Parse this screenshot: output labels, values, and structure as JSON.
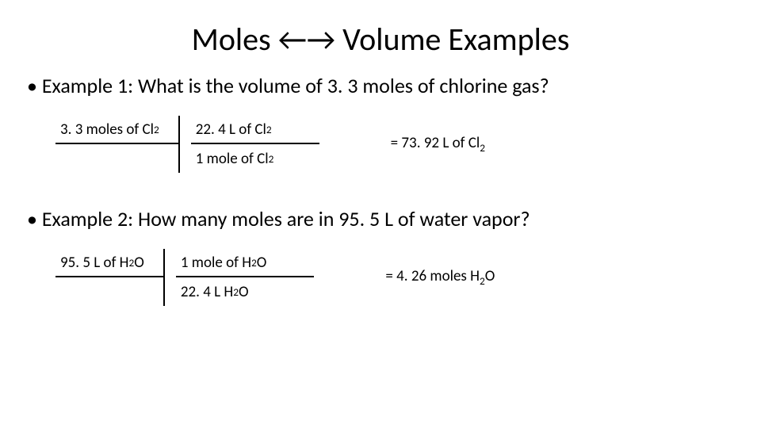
{
  "title": "Moles ←→ Volume Examples",
  "example1": {
    "bullet": "• Example 1: What is the volume of 3. 3 moles of chlorine gas?",
    "given": "3. 3 moles of Cl",
    "given_sub": "2",
    "frac_top": "22. 4 L of Cl",
    "frac_top_sub": "2",
    "frac_bot": "1 mole of Cl",
    "frac_bot_sub": "2",
    "result": "= 73. 92 L of Cl",
    "result_sub": "2"
  },
  "example2": {
    "bullet": "• Example 2: How many moles are in 95. 5 L of water vapor?",
    "given": "95. 5 L of H",
    "given_sub": "2",
    "given_tail": "O",
    "frac_top": "1 mole of H",
    "frac_top_sub": "2",
    "frac_top_tail": "O",
    "frac_bot": "22. 4 L H",
    "frac_bot_sub": "2",
    "frac_bot_tail": "O",
    "result": "= 4. 26 moles H",
    "result_sub": "2",
    "result_tail": "O"
  }
}
